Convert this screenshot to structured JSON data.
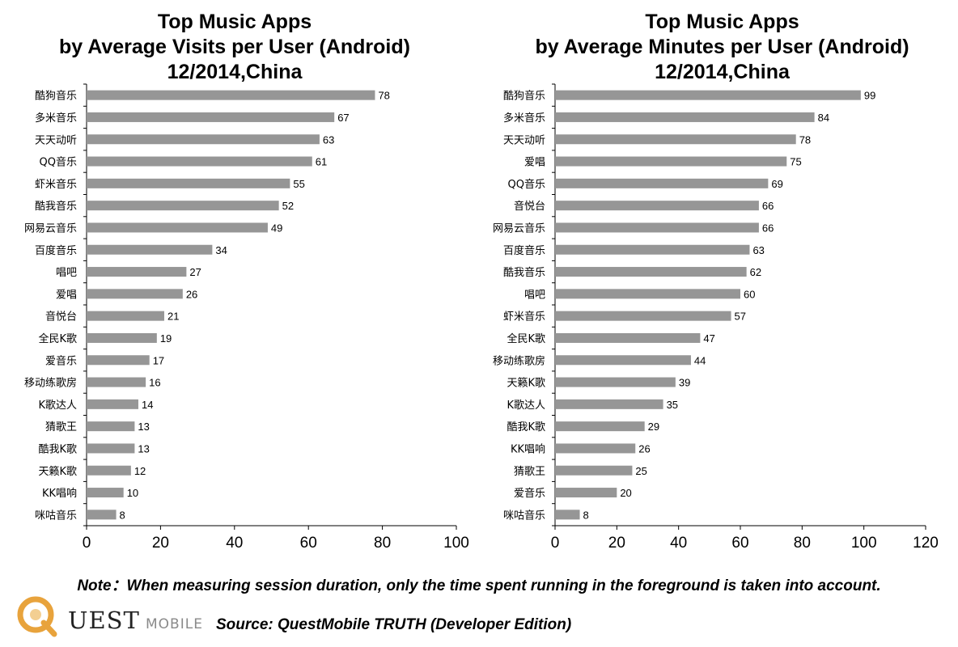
{
  "colors": {
    "bar": "#969696",
    "axis": "#000000",
    "text": "#000000",
    "logo_accent": "#e8a33c"
  },
  "chart_data": [
    {
      "type": "bar",
      "orientation": "horizontal",
      "title_lines": [
        "Top Music Apps",
        "by Average Visits per User (Android)",
        "12/2014,China"
      ],
      "categories": [
        "酷狗音乐",
        "多米音乐",
        "天天动听",
        "QQ音乐",
        "虾米音乐",
        "酷我音乐",
        "网易云音乐",
        "百度音乐",
        "唱吧",
        "爱唱",
        "音悦台",
        "全民K歌",
        "爱音乐",
        "移动练歌房",
        "K歌达人",
        "猜歌王",
        "酷我K歌",
        "天籁K歌",
        "KK唱响",
        "咪咕音乐"
      ],
      "values": [
        78,
        67,
        63,
        61,
        55,
        52,
        49,
        34,
        27,
        26,
        21,
        19,
        17,
        16,
        14,
        13,
        13,
        12,
        10,
        8
      ],
      "xlim": [
        0,
        100
      ],
      "ticks": [
        "0",
        "20",
        "40",
        "60",
        "80",
        "100"
      ],
      "xlabel": "",
      "ylabel": ""
    },
    {
      "type": "bar",
      "orientation": "horizontal",
      "title_lines": [
        "Top Music Apps",
        "by Average Minutes per User  (Android)",
        "12/2014,China"
      ],
      "categories": [
        "酷狗音乐",
        "多米音乐",
        "天天动听",
        "爱唱",
        "QQ音乐",
        "音悦台",
        "网易云音乐",
        "百度音乐",
        "酷我音乐",
        "唱吧",
        "虾米音乐",
        "全民K歌",
        "移动练歌房",
        "天籁K歌",
        "K歌达人",
        "酷我K歌",
        "KK唱响",
        "猜歌王",
        "爱音乐",
        "咪咕音乐"
      ],
      "values": [
        99,
        84,
        78,
        75,
        69,
        66,
        66,
        63,
        62,
        60,
        57,
        47,
        44,
        39,
        35,
        29,
        26,
        25,
        20,
        8
      ],
      "xlim": [
        0,
        120
      ],
      "ticks": [
        "0",
        "20",
        "40",
        "60",
        "80",
        "100",
        "120"
      ],
      "xlabel": "",
      "ylabel": ""
    }
  ],
  "note": "Note：When measuring session duration, only the time spent running in the foreground is taken into account.",
  "source": "Source: QuestMobile TRUTH (Developer Edition)",
  "logo": {
    "word": "UEST",
    "sub": "MOBILE"
  }
}
